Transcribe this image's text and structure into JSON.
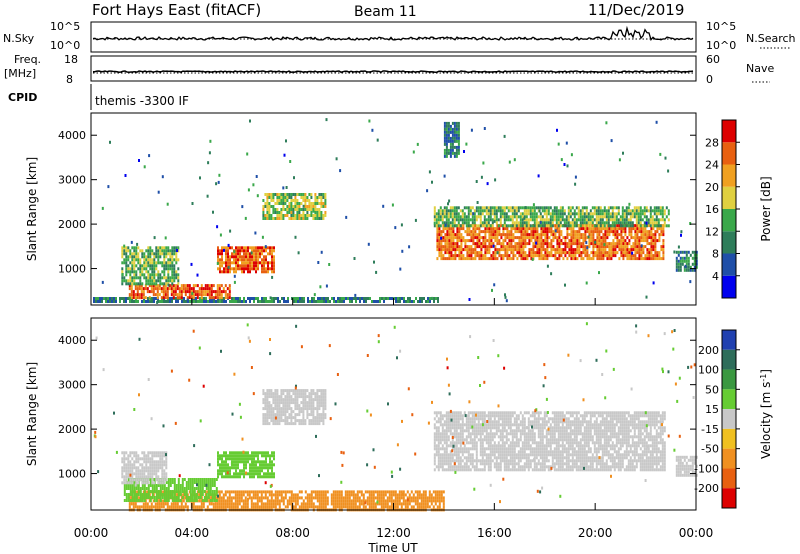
{
  "header": {
    "station": "Fort Hays East (fitACF)",
    "beam": "Beam 11",
    "date": "11/Dec/2019"
  },
  "top_panels": {
    "nsky_label": "N.Sky",
    "nsky_ticks": [
      "10^5",
      "10^0"
    ],
    "nsearch_label": "N.Search",
    "nsearch_ticks": [
      "10^5",
      "10^0"
    ],
    "freq_label": "Freq.",
    "freq_unit": "[MHz]",
    "freq_ticks": [
      "18",
      "8"
    ],
    "nave_label": "Nave",
    "nave_ticks": [
      "60",
      "0"
    ],
    "cpid_label": "CPID",
    "cpid_text": "themis -3300 IF"
  },
  "colors": {
    "power": [
      "#0000ee",
      "#1f4fa8",
      "#2e7d5a",
      "#3aa84a",
      "#e0d040",
      "#f0a020",
      "#e86010",
      "#dd0000"
    ],
    "velocity": [
      "#2040b0",
      "#2e6d5a",
      "#3a9840",
      "#66cc33",
      "#c8c8c8",
      "#f0c020",
      "#f09020",
      "#e86010",
      "#dd0000"
    ]
  },
  "chart_data": [
    {
      "type": "heatmap",
      "name": "power-panel",
      "ylabel": "Slant Range [km]",
      "ylim": [
        180,
        4500
      ],
      "xlim": [
        0,
        24
      ],
      "yticks": [
        "1000",
        "2000",
        "3000",
        "4000"
      ],
      "colorbar": {
        "label": "Power [dB]",
        "ticks": [
          "4",
          "8",
          "12",
          "16",
          "20",
          "24",
          "28"
        ],
        "range": [
          0,
          32
        ]
      },
      "regions": [
        {
          "t0": 0.0,
          "t1": 13.8,
          "r0": 250,
          "r1": 360,
          "value": 10
        },
        {
          "t0": 1.5,
          "t1": 5.5,
          "r0": 360,
          "r1": 650,
          "value": 26
        },
        {
          "t0": 1.2,
          "t1": 3.5,
          "r0": 650,
          "r1": 1500,
          "value": 14
        },
        {
          "t0": 5.0,
          "t1": 7.3,
          "r0": 950,
          "r1": 1500,
          "value": 26
        },
        {
          "t0": 6.8,
          "t1": 9.3,
          "r0": 2100,
          "r1": 2700,
          "value": 16
        },
        {
          "t0": 13.7,
          "t1": 22.7,
          "r0": 1200,
          "r1": 2000,
          "value": 25
        },
        {
          "t0": 13.6,
          "t1": 22.9,
          "r0": 1950,
          "r1": 2400,
          "value": 14
        },
        {
          "t0": 23.2,
          "t1": 24.0,
          "r0": 950,
          "r1": 1400,
          "value": 10
        },
        {
          "t0": 14.0,
          "t1": 14.6,
          "r0": 3500,
          "r1": 4300,
          "value": 9
        }
      ]
    },
    {
      "type": "heatmap",
      "name": "velocity-panel",
      "ylabel": "Slant Range [km]",
      "xlabel": "Time UT",
      "ylim": [
        180,
        4500
      ],
      "xlim": [
        0,
        24
      ],
      "yticks": [
        "1000",
        "2000",
        "3000",
        "4000"
      ],
      "xticks": [
        "00:00",
        "04:00",
        "08:00",
        "12:00",
        "16:00",
        "20:00",
        "00:00"
      ],
      "colorbar": {
        "label": "Velocity [m s^-1]",
        "ticks": [
          "200",
          "100",
          "50",
          "15",
          "-15",
          "-50",
          "-100",
          "-200"
        ]
      },
      "regions": [
        {
          "t0": 1.5,
          "t1": 14.0,
          "r0": 200,
          "r1": 620,
          "value": -40
        },
        {
          "t0": 1.3,
          "t1": 5.0,
          "r0": 400,
          "r1": 900,
          "value": 35
        },
        {
          "t0": 5.0,
          "t1": 7.3,
          "r0": 950,
          "r1": 1500,
          "value": 40
        },
        {
          "t0": 1.2,
          "t1": 3.0,
          "r0": 800,
          "r1": 1500,
          "value": 0
        },
        {
          "t0": 6.8,
          "t1": 9.3,
          "r0": 2100,
          "r1": 2900,
          "value": 0
        },
        {
          "t0": 13.6,
          "t1": 22.8,
          "r0": 1100,
          "r1": 2400,
          "value": 0
        },
        {
          "t0": 23.2,
          "t1": 24.0,
          "r0": 950,
          "r1": 1400,
          "value": 0
        }
      ]
    }
  ]
}
